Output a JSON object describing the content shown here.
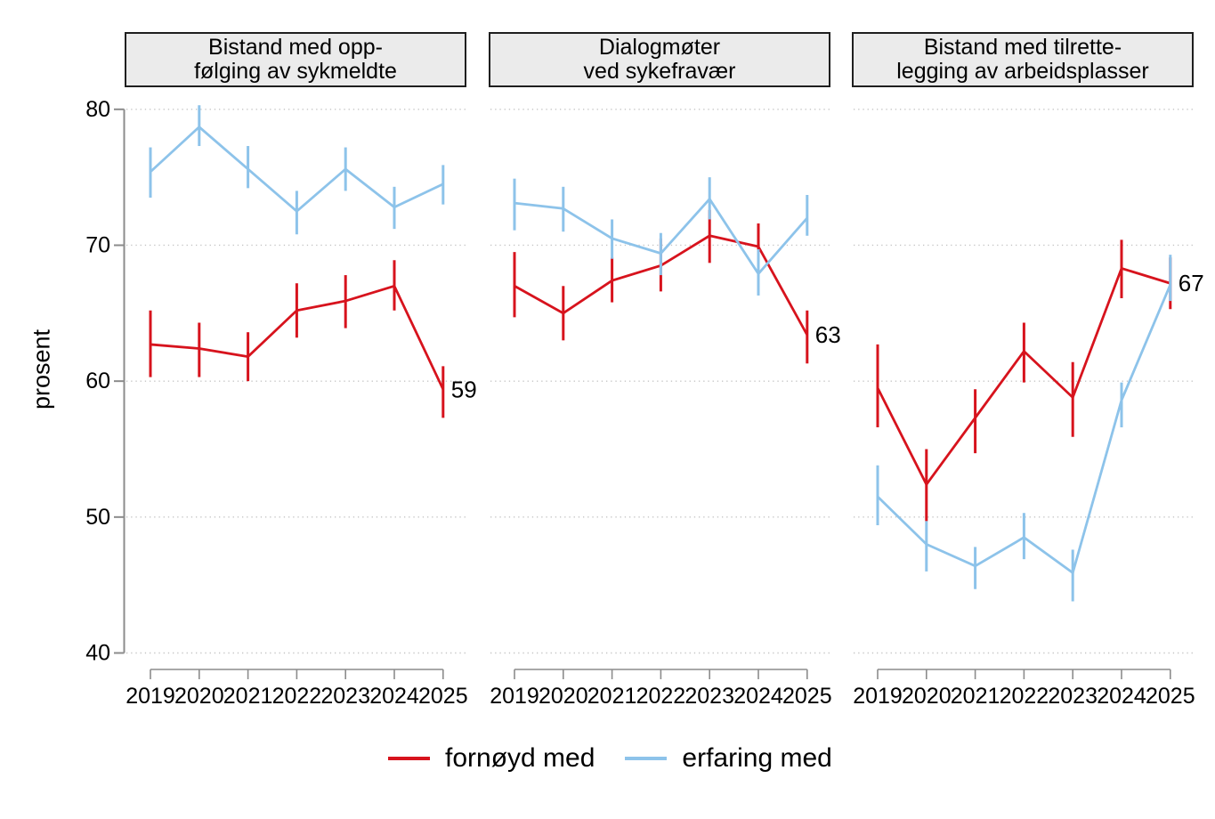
{
  "chart_data": {
    "type": "line",
    "title": "",
    "ylabel": "prosent",
    "ylim": [
      40,
      80
    ],
    "yticks": [
      80,
      70,
      60,
      50,
      40
    ],
    "x": [
      "2019",
      "2020",
      "2021",
      "2022",
      "2023",
      "2024",
      "2025"
    ],
    "grid": "horizontal dotted",
    "legend_position": "bottom-center",
    "error_bars": "vertical confidence spikes, no caps",
    "panels": [
      {
        "title": "Bistand med opp-\nfølging av sykmeldte",
        "series": [
          {
            "name": "fornøyd med",
            "color": "#d7131d",
            "values": [
              62.7,
              62.4,
              61.8,
              65.2,
              65.9,
              67.0,
              59.4
            ],
            "ci_low": [
              60.3,
              60.3,
              60.0,
              63.2,
              63.9,
              65.2,
              57.3
            ],
            "ci_high": [
              65.2,
              64.3,
              63.6,
              67.2,
              67.8,
              68.9,
              61.1
            ],
            "end_label": "59"
          },
          {
            "name": "erfaring med",
            "color": "#8dc3ea",
            "values": [
              75.4,
              78.7,
              75.6,
              72.5,
              75.6,
              72.8,
              74.5
            ],
            "ci_low": [
              73.5,
              77.3,
              74.2,
              70.8,
              74.0,
              71.2,
              73.0
            ],
            "ci_high": [
              77.2,
              80.3,
              77.3,
              74.0,
              77.2,
              74.3,
              75.9
            ],
            "end_label": ""
          }
        ]
      },
      {
        "title": "Dialogmøter\nved sykefravær",
        "series": [
          {
            "name": "fornøyd med",
            "color": "#d7131d",
            "values": [
              67.0,
              65.0,
              67.4,
              68.5,
              70.7,
              69.9,
              63.4
            ],
            "ci_low": [
              64.7,
              63.0,
              65.8,
              66.6,
              68.7,
              66.8,
              61.3
            ],
            "ci_high": [
              69.5,
              67.0,
              69.1,
              70.5,
              72.6,
              71.6,
              65.2
            ],
            "end_label": "63"
          },
          {
            "name": "erfaring med",
            "color": "#8dc3ea",
            "values": [
              73.1,
              72.7,
              70.5,
              69.4,
              73.4,
              67.9,
              72.0
            ],
            "ci_low": [
              71.1,
              71.0,
              69.0,
              67.8,
              71.9,
              66.3,
              70.7
            ],
            "ci_high": [
              74.9,
              74.3,
              71.9,
              70.9,
              75.0,
              69.7,
              73.7
            ],
            "end_label": ""
          }
        ]
      },
      {
        "title": "Bistand med tilrette-\nlegging av arbeidsplasser",
        "series": [
          {
            "name": "fornøyd med",
            "color": "#d7131d",
            "values": [
              59.5,
              52.4,
              57.3,
              62.2,
              58.8,
              68.3,
              67.2
            ],
            "ci_low": [
              56.6,
              49.7,
              54.7,
              59.9,
              55.9,
              66.1,
              65.3
            ],
            "ci_high": [
              62.7,
              55.0,
              59.4,
              64.3,
              61.4,
              70.4,
              69.1
            ],
            "end_label": "67"
          },
          {
            "name": "erfaring med",
            "color": "#8dc3ea",
            "values": [
              51.5,
              48.0,
              46.4,
              48.5,
              45.9,
              58.6,
              67.1
            ],
            "ci_low": [
              49.4,
              46.0,
              44.7,
              46.9,
              43.8,
              56.6,
              65.9
            ],
            "ci_high": [
              53.8,
              49.7,
              47.8,
              50.3,
              47.6,
              59.9,
              69.3
            ],
            "end_label": ""
          }
        ]
      }
    ],
    "legend": [
      {
        "label": "fornøyd med",
        "color": "#d7131d"
      },
      {
        "label": "erfaring med",
        "color": "#8dc3ea"
      }
    ],
    "style_colors": {
      "axis": "#8c8c8c",
      "grid": "#c4c4c4",
      "panel_header_fill": "#ebebeb",
      "panel_header_border": "#1f1f1f",
      "text": "#000000",
      "background": "#ffffff"
    }
  }
}
